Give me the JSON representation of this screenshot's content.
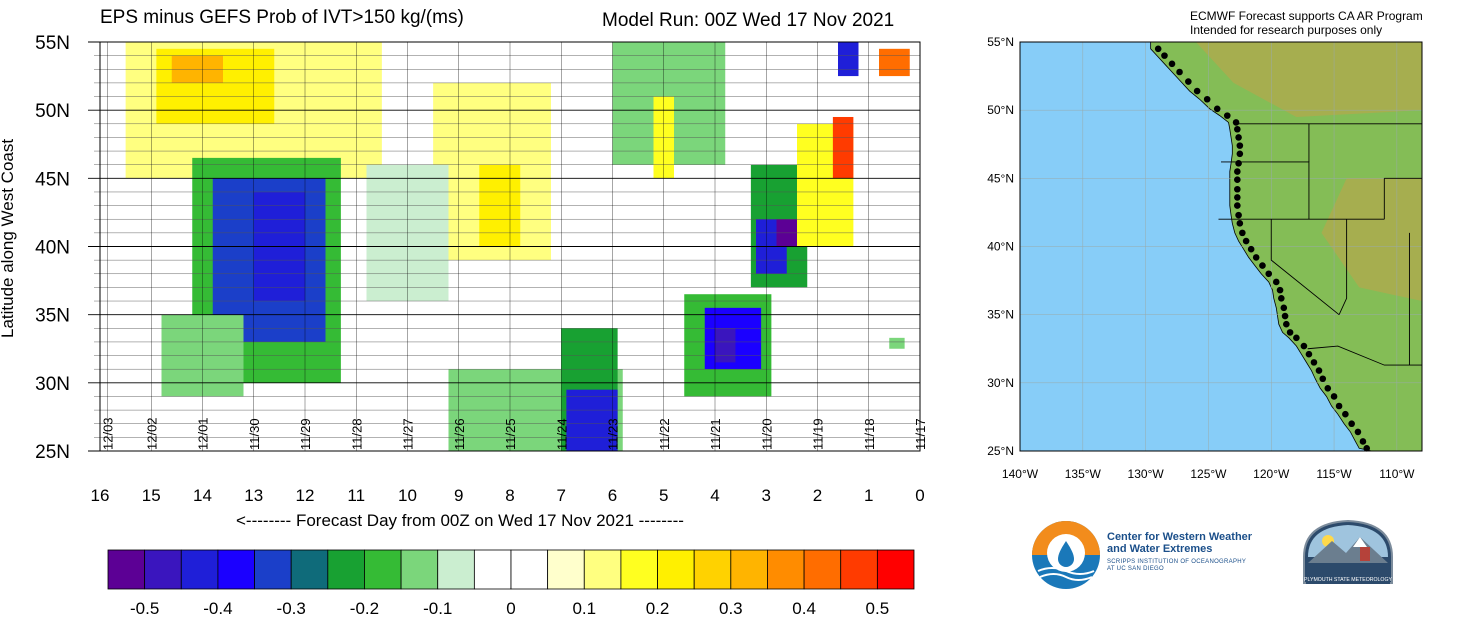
{
  "header": {
    "left_title": "EPS minus GEFS Prob of IVT>150 kg/(ms)",
    "right_title": "Model Run: 00Z Wed 17 Nov 2021"
  },
  "map_note": {
    "line1": "ECMWF Forecast supports CA AR Program",
    "line2": "Intended for research purposes only"
  },
  "logos": {
    "cw3e_line1": "Center for Western Weather",
    "cw3e_line2": "and Water Extremes",
    "cw3e_sub1": "SCRIPPS INSTITUTION OF OCEANOGRAPHY",
    "cw3e_sub2": "AT UC SAN DIEGO",
    "psu": "PLYMOUTH STATE METEOROLOGY"
  },
  "chart_data": [
    {
      "type": "heatmap",
      "title": "EPS minus GEFS Prob of IVT>150 kg/(ms)",
      "xlabel": "<-------- Forecast Day from 00Z on Wed 17 Nov 2021 --------",
      "ylabel": "Latitude along West Coast",
      "x_ticks": [
        16,
        15,
        14,
        13,
        12,
        11,
        10,
        9,
        8,
        7,
        6,
        5,
        4,
        3,
        2,
        1,
        0
      ],
      "xlim": [
        16,
        0
      ],
      "y_ticks": [
        "25N",
        "30N",
        "35N",
        "40N",
        "45N",
        "50N",
        "55N"
      ],
      "ylim": [
        25,
        55
      ],
      "date_labels": [
        {
          "day": 15.85,
          "label": "12/03"
        },
        {
          "day": 15,
          "label": "12/02"
        },
        {
          "day": 14,
          "label": "12/01"
        },
        {
          "day": 13,
          "label": "11/30"
        },
        {
          "day": 12,
          "label": "11/29"
        },
        {
          "day": 11,
          "label": "11/28"
        },
        {
          "day": 10,
          "label": "11/27"
        },
        {
          "day": 9,
          "label": "11/26"
        },
        {
          "day": 8,
          "label": "11/25"
        },
        {
          "day": 7,
          "label": "11/24"
        },
        {
          "day": 6,
          "label": "11/23"
        },
        {
          "day": 5,
          "label": "11/22"
        },
        {
          "day": 4,
          "label": "11/21"
        },
        {
          "day": 3,
          "label": "11/20"
        },
        {
          "day": 2,
          "label": "11/19"
        },
        {
          "day": 1,
          "label": "11/18"
        },
        {
          "day": 0,
          "label": "11/17"
        }
      ],
      "regions": [
        {
          "day_from": 15.5,
          "day_to": 10.5,
          "lat_from": 45,
          "lat_to": 55,
          "value": 0.12
        },
        {
          "day_from": 14.9,
          "day_to": 12.6,
          "lat_from": 49,
          "lat_to": 54.5,
          "value": 0.22
        },
        {
          "day_from": 14.6,
          "day_to": 13.6,
          "lat_from": 52,
          "lat_to": 54,
          "value": 0.3
        },
        {
          "day_from": 14.2,
          "day_to": 11.3,
          "lat_from": 30,
          "lat_to": 46.5,
          "value": -0.2
        },
        {
          "day_from": 13.8,
          "day_to": 11.6,
          "lat_from": 33,
          "lat_to": 45,
          "value": -0.32
        },
        {
          "day_from": 13.0,
          "day_to": 12.0,
          "lat_from": 36,
          "lat_to": 44,
          "value": -0.42
        },
        {
          "day_from": 14.8,
          "day_to": 13.2,
          "lat_from": 29,
          "lat_to": 35,
          "value": -0.15
        },
        {
          "day_from": 9.5,
          "day_to": 7.2,
          "lat_from": 39,
          "lat_to": 52,
          "value": 0.12
        },
        {
          "day_from": 8.6,
          "day_to": 7.8,
          "lat_from": 40,
          "lat_to": 46,
          "value": 0.2
        },
        {
          "day_from": 10.8,
          "day_to": 9.2,
          "lat_from": 36,
          "lat_to": 46,
          "value": -0.08
        },
        {
          "day_from": 9.2,
          "day_to": 5.8,
          "lat_from": 25,
          "lat_to": 31,
          "value": -0.12
        },
        {
          "day_from": 7.0,
          "day_to": 5.9,
          "lat_from": 25,
          "lat_to": 34,
          "value": -0.22
        },
        {
          "day_from": 6.9,
          "day_to": 5.9,
          "lat_from": 25,
          "lat_to": 29.5,
          "value": -0.42
        },
        {
          "day_from": 6.0,
          "day_to": 3.8,
          "lat_from": 46,
          "lat_to": 55,
          "value": -0.15
        },
        {
          "day_from": 5.2,
          "day_to": 4.8,
          "lat_from": 45,
          "lat_to": 51,
          "value": 0.15
        },
        {
          "day_from": 4.6,
          "day_to": 2.9,
          "lat_from": 29,
          "lat_to": 36.5,
          "value": -0.2
        },
        {
          "day_from": 4.2,
          "day_to": 3.1,
          "lat_from": 31,
          "lat_to": 35.5,
          "value": -0.36
        },
        {
          "day_from": 4.0,
          "day_to": 3.6,
          "lat_from": 31.5,
          "lat_to": 34,
          "value": -0.5
        },
        {
          "day_from": 3.3,
          "day_to": 2.2,
          "lat_from": 37,
          "lat_to": 46,
          "value": -0.22
        },
        {
          "day_from": 3.2,
          "day_to": 2.6,
          "lat_from": 38,
          "lat_to": 42,
          "value": -0.45
        },
        {
          "day_from": 2.8,
          "day_to": 2.4,
          "lat_from": 40,
          "lat_to": 42,
          "value": -0.52
        },
        {
          "day_from": 2.4,
          "day_to": 1.3,
          "lat_from": 40,
          "lat_to": 49,
          "value": 0.15
        },
        {
          "day_from": 1.7,
          "day_to": 1.3,
          "lat_from": 45,
          "lat_to": 49.5,
          "value": 0.45
        },
        {
          "day_from": 1.6,
          "day_to": 1.2,
          "lat_from": 52.5,
          "lat_to": 55,
          "value": -0.45
        },
        {
          "day_from": 0.8,
          "day_to": 0.2,
          "lat_from": 52.5,
          "lat_to": 54.5,
          "value": 0.4
        },
        {
          "day_from": 0.6,
          "day_to": 0.3,
          "lat_from": 32.5,
          "lat_to": 33.3,
          "value": -0.15
        }
      ],
      "colorbar": {
        "colors": [
          "#5c0095",
          "#3a15be",
          "#1f1fd8",
          "#1b00ff",
          "#1b3fc9",
          "#0f6b7a",
          "#18a132",
          "#35bb35",
          "#7bd67b",
          "#cbeed0",
          "#ffffff",
          "#ffffff",
          "#ffffcc",
          "#ffff80",
          "#ffff20",
          "#fff000",
          "#ffd200",
          "#ffb400",
          "#ff8c00",
          "#ff6d00",
          "#ff3b00",
          "#ff0000"
        ],
        "tick_labels": [
          "-0.5",
          "-0.4",
          "-0.3",
          "-0.2",
          "-0.1",
          "0",
          "0.1",
          "0.2",
          "0.3",
          "0.4",
          "0.5"
        ]
      }
    },
    {
      "type": "map",
      "lat_ticks": [
        "25°N",
        "30°N",
        "35°N",
        "40°N",
        "45°N",
        "50°N",
        "55°N"
      ],
      "lon_ticks": [
        "140°W",
        "135°W",
        "130°W",
        "125°W",
        "120°W",
        "115°W",
        "110°W"
      ],
      "lon_range": [
        -140,
        -108
      ],
      "lat_range": [
        25,
        55
      ],
      "ocean_color": "#87cdf8",
      "land_color": "#84bd56",
      "coast_points": [
        [
          -129.0,
          54.5
        ],
        [
          -128.5,
          54.0
        ],
        [
          -127.9,
          53.4
        ],
        [
          -127.3,
          52.8
        ],
        [
          -126.6,
          52.1
        ],
        [
          -125.9,
          51.4
        ],
        [
          -125.1,
          50.8
        ],
        [
          -124.3,
          50.1
        ],
        [
          -123.5,
          49.6
        ],
        [
          -122.8,
          49.1
        ],
        [
          -122.7,
          48.6
        ],
        [
          -122.6,
          48.0
        ],
        [
          -122.5,
          47.4
        ],
        [
          -122.5,
          46.8
        ],
        [
          -122.6,
          46.1
        ],
        [
          -122.7,
          45.5
        ],
        [
          -122.7,
          44.9
        ],
        [
          -122.7,
          44.2
        ],
        [
          -122.7,
          43.6
        ],
        [
          -122.7,
          43.0
        ],
        [
          -122.6,
          42.3
        ],
        [
          -122.5,
          41.7
        ],
        [
          -122.3,
          41.0
        ],
        [
          -122.0,
          40.4
        ],
        [
          -121.6,
          39.8
        ],
        [
          -121.2,
          39.2
        ],
        [
          -120.7,
          38.6
        ],
        [
          -120.2,
          38.0
        ],
        [
          -119.6,
          37.4
        ],
        [
          -119.3,
          36.8
        ],
        [
          -119.2,
          36.2
        ],
        [
          -119.0,
          35.5
        ],
        [
          -118.9,
          34.9
        ],
        [
          -118.8,
          34.3
        ],
        [
          -118.5,
          33.7
        ],
        [
          -118.0,
          33.3
        ],
        [
          -117.4,
          32.7
        ],
        [
          -117.0,
          32.1
        ],
        [
          -116.6,
          31.5
        ],
        [
          -116.2,
          30.9
        ],
        [
          -115.9,
          30.3
        ],
        [
          -115.5,
          29.6
        ],
        [
          -115.0,
          29.0
        ],
        [
          -114.6,
          28.3
        ],
        [
          -114.1,
          27.7
        ],
        [
          -113.6,
          27.0
        ],
        [
          -113.1,
          26.4
        ],
        [
          -112.7,
          25.7
        ],
        [
          -112.4,
          25.2
        ]
      ]
    }
  ]
}
